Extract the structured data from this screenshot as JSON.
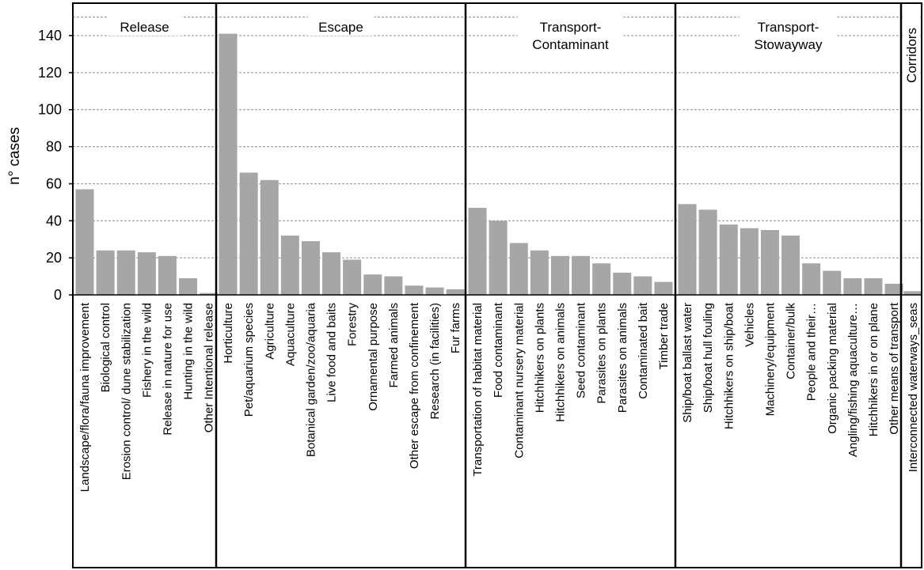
{
  "chart_data": {
    "type": "bar",
    "ylabel": "n° cases",
    "ylim": [
      0,
      150
    ],
    "yticks": [
      0,
      20,
      40,
      60,
      80,
      100,
      120,
      140
    ],
    "grid": "horizontal dashed",
    "bar_color": "#a6a6a6",
    "groups": [
      {
        "name_lines": [
          "Release"
        ],
        "categories": [
          "Landscape/flora/fauna improvement",
          "Biological control",
          "Erosion control/ dune stabilization",
          "Fishery in the wild",
          "Release in nature for use",
          "Hunting in the wild",
          "Other Intentional release"
        ],
        "values": [
          57,
          24,
          24,
          23,
          21,
          9,
          1
        ]
      },
      {
        "name_lines": [
          "Escape"
        ],
        "categories": [
          "Horticulture",
          "Pet/aquarium species",
          "Agriculture",
          "Aquaculture",
          "Botanical garden/zoo/aquaria",
          "Live food and baits",
          "Forestry",
          "Ornamental purpose",
          "Farmed animals",
          "Other escape from confinement",
          "Research (in facilities)",
          "Fur farms"
        ],
        "values": [
          141,
          66,
          62,
          32,
          29,
          23,
          19,
          11,
          10,
          5,
          4,
          3
        ]
      },
      {
        "name_lines": [
          "Transport-",
          "Contaminant"
        ],
        "categories": [
          "Transportation of habitat material",
          "Food contaminant",
          "Contaminant nursery material",
          "Hitchhikers on plants",
          "Hitchhikers on animals",
          "Seed contaminant",
          "Parasites on plants",
          "Parasites on animals",
          "Contaminated bait",
          "Timber trade"
        ],
        "values": [
          47,
          40,
          28,
          24,
          21,
          21,
          17,
          12,
          10,
          7
        ]
      },
      {
        "name_lines": [
          "Transport-",
          "Stowayway"
        ],
        "categories": [
          "Ship/boat ballast water",
          "Ship/boat hull fouling",
          "Hitchhikers on ship/boat",
          "Vehicles",
          "Machinery/equipment",
          "Container/bulk",
          "People and their…",
          "Organic packing material",
          "Angling/fishing aquaculture…",
          "Hitchhikers in or on plane",
          "Other means of transport"
        ],
        "values": [
          49,
          46,
          38,
          36,
          35,
          32,
          17,
          13,
          9,
          9,
          6
        ]
      },
      {
        "name_lines": [
          "Corridors"
        ],
        "categories": [
          "Interconnected waterways_seas"
        ],
        "values": [
          2
        ]
      }
    ]
  }
}
